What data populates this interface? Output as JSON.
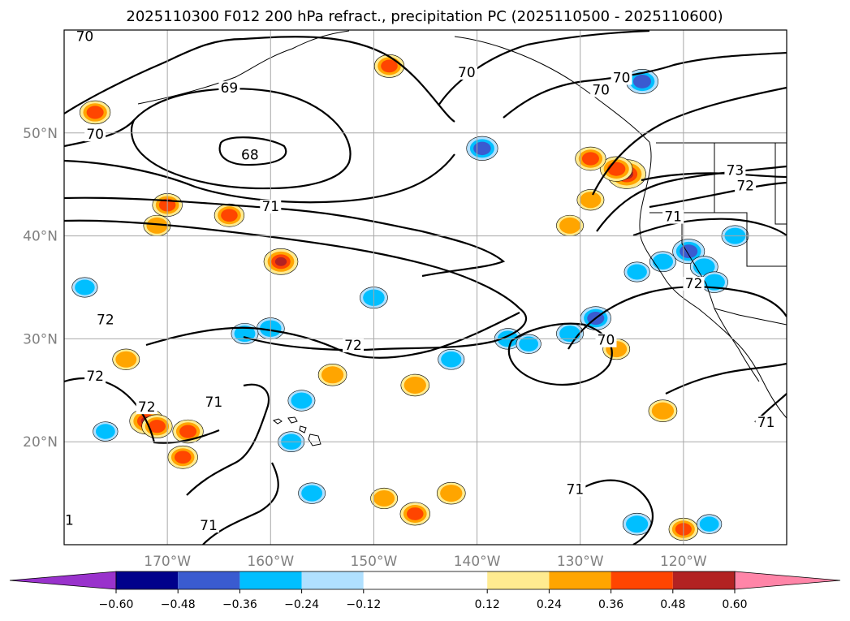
{
  "chart_data": {
    "type": "map-contour",
    "title": "2025110300 F012 200 hPa refract., precipitation PC (2025110500 - 2025110600)",
    "lon_range": [
      -180,
      -110
    ],
    "lat_range": [
      10,
      60
    ],
    "lon_ticks": [
      {
        "value": -170,
        "label": "170°W"
      },
      {
        "value": -160,
        "label": "160°W"
      },
      {
        "value": -150,
        "label": "150°W"
      },
      {
        "value": -140,
        "label": "140°W"
      },
      {
        "value": -130,
        "label": "130°W"
      },
      {
        "value": -120,
        "label": "120°W"
      }
    ],
    "lat_ticks": [
      {
        "value": 20,
        "label": "20°N"
      },
      {
        "value": 30,
        "label": "30°N"
      },
      {
        "value": 40,
        "label": "40°N"
      },
      {
        "value": 50,
        "label": "50°N"
      }
    ],
    "grid": true,
    "colorbar": {
      "bounds": [
        -0.72,
        -0.6,
        -0.48,
        -0.36,
        -0.24,
        -0.12,
        0.12,
        0.24,
        0.36,
        0.48,
        0.6,
        0.72
      ],
      "colors": [
        "#9932cc",
        "#00008b",
        "#3a5bd0",
        "#00bfff",
        "#b0e0ff",
        "#ffffff",
        "#ffeb90",
        "#ffa500",
        "#ff4500",
        "#b22222",
        "#ff85a8"
      ],
      "under_color": "#9932cc",
      "over_color": "#ff85a8",
      "tick_labels": [
        "−0.60",
        "−0.48",
        "−0.36",
        "−0.24",
        "−0.12",
        "0.12",
        "0.24",
        "0.36",
        "0.48",
        "0.60"
      ],
      "tick_values": [
        -0.6,
        -0.48,
        -0.36,
        -0.24,
        -0.12,
        0.12,
        0.24,
        0.36,
        0.48,
        0.6
      ]
    },
    "contour_labels": [
      {
        "text": "70",
        "lon": -178,
        "lat": 59
      },
      {
        "text": "69",
        "lon": -164,
        "lat": 54
      },
      {
        "text": "70",
        "lon": -177,
        "lat": 49.5
      },
      {
        "text": "68",
        "lon": -162,
        "lat": 47.5
      },
      {
        "text": "71",
        "lon": -160,
        "lat": 42.5
      },
      {
        "text": "70",
        "lon": -141,
        "lat": 55.5
      },
      {
        "text": "70",
        "lon": -128,
        "lat": 53.8
      },
      {
        "text": "70",
        "lon": -126,
        "lat": 55
      },
      {
        "text": "73",
        "lon": -115,
        "lat": 46
      },
      {
        "text": "72",
        "lon": -114,
        "lat": 44.5
      },
      {
        "text": "71",
        "lon": -121,
        "lat": 41.5
      },
      {
        "text": "72",
        "lon": -119,
        "lat": 35
      },
      {
        "text": "70",
        "lon": -127.5,
        "lat": 29.5
      },
      {
        "text": "72",
        "lon": -176,
        "lat": 31.5
      },
      {
        "text": "72",
        "lon": -177,
        "lat": 26
      },
      {
        "text": "72",
        "lon": -152,
        "lat": 29
      },
      {
        "text": "72",
        "lon": -172,
        "lat": 23
      },
      {
        "text": "71",
        "lon": -165.5,
        "lat": 23.5
      },
      {
        "text": "71",
        "lon": -112,
        "lat": 21.5
      },
      {
        "text": "71",
        "lon": -130.5,
        "lat": 15
      },
      {
        "text": "71",
        "lon": -166,
        "lat": 11.5
      },
      {
        "text": "1",
        "lon": -179.5,
        "lat": 12
      }
    ],
    "precip_blobs": [
      {
        "lon": -172,
        "lat": 22,
        "value": 0.5
      },
      {
        "lon": -171,
        "lat": 21.5,
        "value": 0.4
      },
      {
        "lon": -159,
        "lat": 37.5,
        "value": 0.5
      },
      {
        "lon": -125.5,
        "lat": 46,
        "value": 0.62
      },
      {
        "lon": -126.5,
        "lat": 46.5,
        "value": 0.45
      },
      {
        "lon": -129,
        "lat": 47.5,
        "value": 0.4
      },
      {
        "lon": -177,
        "lat": 52,
        "value": 0.4
      },
      {
        "lon": -170,
        "lat": 43,
        "value": 0.38
      },
      {
        "lon": -164,
        "lat": 42,
        "value": 0.38
      },
      {
        "lon": -171,
        "lat": 41,
        "value": 0.3
      },
      {
        "lon": -168,
        "lat": 21,
        "value": 0.4
      },
      {
        "lon": -168.5,
        "lat": 18.5,
        "value": 0.38
      },
      {
        "lon": -148.5,
        "lat": 56.5,
        "value": 0.38
      },
      {
        "lon": -174,
        "lat": 28,
        "value": 0.3
      },
      {
        "lon": -146,
        "lat": 25.5,
        "value": 0.34
      },
      {
        "lon": -154,
        "lat": 26.5,
        "value": 0.34
      },
      {
        "lon": -146,
        "lat": 13,
        "value": 0.38
      },
      {
        "lon": -149,
        "lat": 14.5,
        "value": 0.3
      },
      {
        "lon": -142.5,
        "lat": 15,
        "value": 0.34
      },
      {
        "lon": -120,
        "lat": 11.5,
        "value": 0.36
      },
      {
        "lon": -129,
        "lat": 43.5,
        "value": 0.3
      },
      {
        "lon": -131,
        "lat": 41,
        "value": 0.3
      },
      {
        "lon": -126.5,
        "lat": 29,
        "value": 0.3
      },
      {
        "lon": -122,
        "lat": 23,
        "value": 0.34
      },
      {
        "lon": -139.5,
        "lat": 48.5,
        "value": -0.42
      },
      {
        "lon": -119.5,
        "lat": 38.5,
        "value": -0.44
      },
      {
        "lon": -118,
        "lat": 37,
        "value": -0.32
      },
      {
        "lon": -117,
        "lat": 35.5,
        "value": -0.3
      },
      {
        "lon": -128.5,
        "lat": 32,
        "value": -0.4
      },
      {
        "lon": -131,
        "lat": 30.5,
        "value": -0.3
      },
      {
        "lon": -150,
        "lat": 34,
        "value": -0.32
      },
      {
        "lon": -160,
        "lat": 31,
        "value": -0.32
      },
      {
        "lon": -162.5,
        "lat": 30.5,
        "value": -0.3
      },
      {
        "lon": -137,
        "lat": 30,
        "value": -0.3
      },
      {
        "lon": -124.5,
        "lat": 36.5,
        "value": -0.26
      },
      {
        "lon": -122,
        "lat": 37.5,
        "value": -0.28
      },
      {
        "lon": -157,
        "lat": 24,
        "value": -0.3
      },
      {
        "lon": -158,
        "lat": 20,
        "value": -0.28
      },
      {
        "lon": -156,
        "lat": 15,
        "value": -0.3
      },
      {
        "lon": -124.5,
        "lat": 12,
        "value": -0.34
      },
      {
        "lon": -124,
        "lat": 55,
        "value": -0.44
      },
      {
        "lon": -178,
        "lat": 35,
        "value": -0.26
      },
      {
        "lon": -142.5,
        "lat": 28,
        "value": -0.28
      },
      {
        "lon": -135,
        "lat": 29.5,
        "value": -0.24
      },
      {
        "lon": -117.5,
        "lat": 12,
        "value": -0.24
      },
      {
        "lon": -115,
        "lat": 40,
        "value": -0.3
      },
      {
        "lon": -176,
        "lat": 21,
        "value": -0.24
      }
    ]
  }
}
